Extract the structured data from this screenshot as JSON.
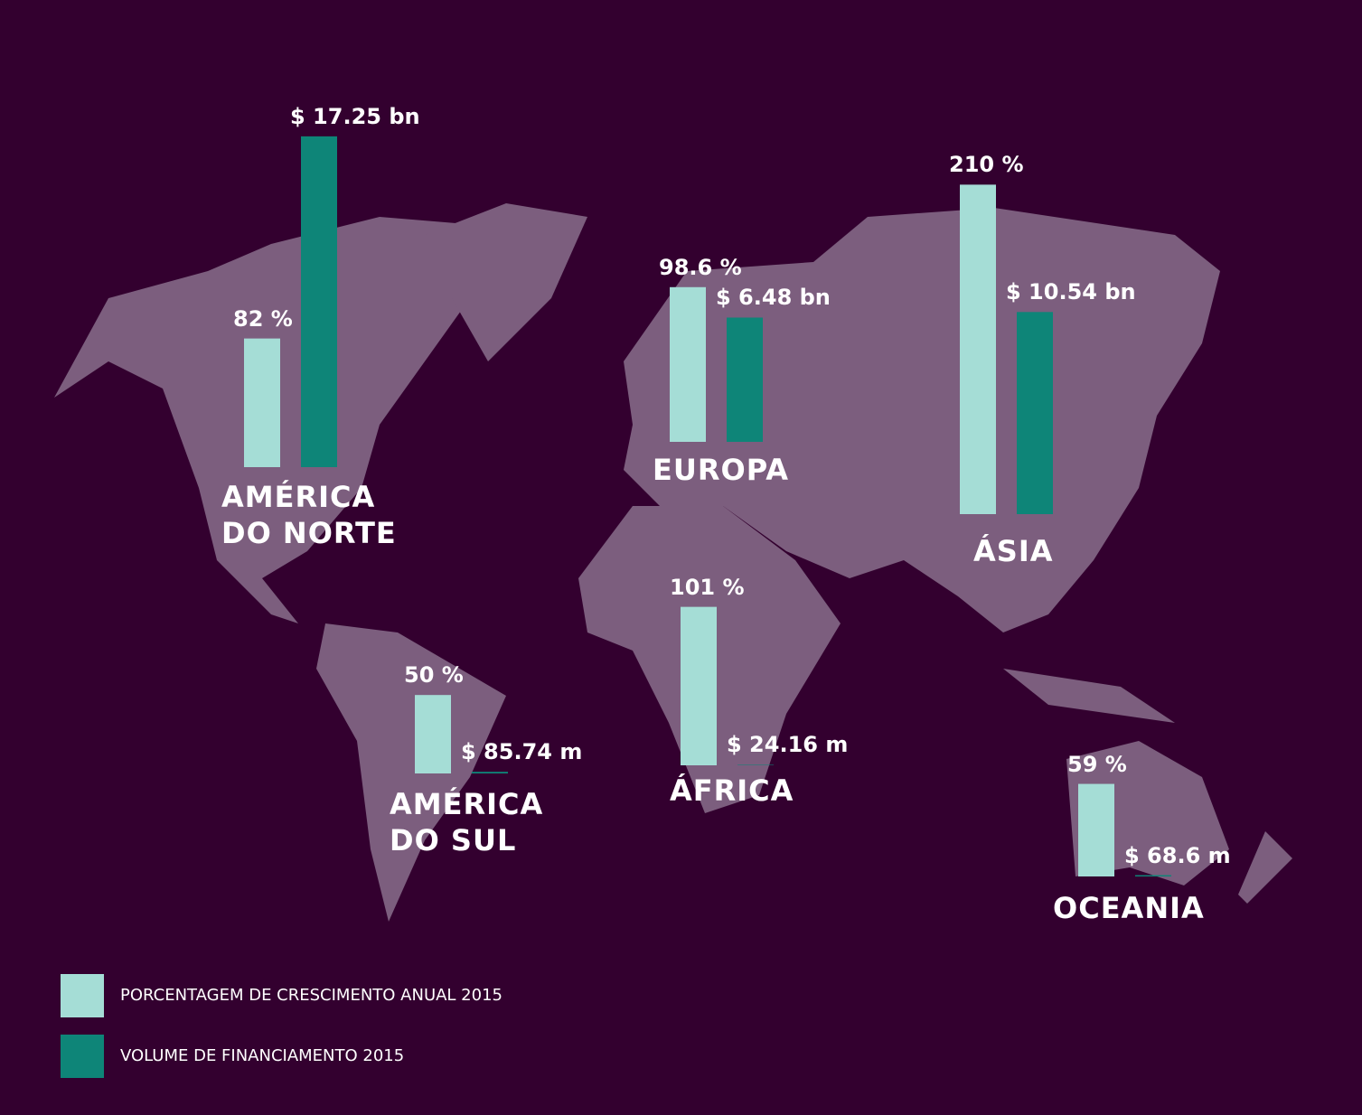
{
  "chart_data": {
    "type": "bar",
    "categories": [
      "AMÉRICA DO NORTE",
      "EUROPA",
      "ÁSIA",
      "AMÉRICA DO SUL",
      "ÁFRICA",
      "OCEANIA"
    ],
    "series": [
      {
        "name": "PORCENTAGEM DE CRESCIMENTO ANUAL 2015",
        "color": "#a5ddd6",
        "values": [
          82,
          98.6,
          210,
          50,
          101,
          59
        ],
        "value_labels": [
          "82 %",
          "98.6 %",
          "210 %",
          "50 %",
          "101 %",
          "59 %"
        ]
      },
      {
        "name": "VOLUME DE FINANCIAMENTO 2015",
        "color": "#0e8578",
        "axis": "y2",
        "values": [
          17.25,
          6.48,
          10.54,
          0.08574,
          0.02416,
          0.0686
        ],
        "value_labels": [
          "$ 17.25 bn",
          "$ 6.48 bn",
          "$ 10.54 bn",
          "$ 85.74 m",
          "$ 24.16 m",
          "$ 68.6 m"
        ]
      }
    ],
    "ylim": [
      0,
      220
    ],
    "y2lim": [
      0,
      18
    ]
  }
}
